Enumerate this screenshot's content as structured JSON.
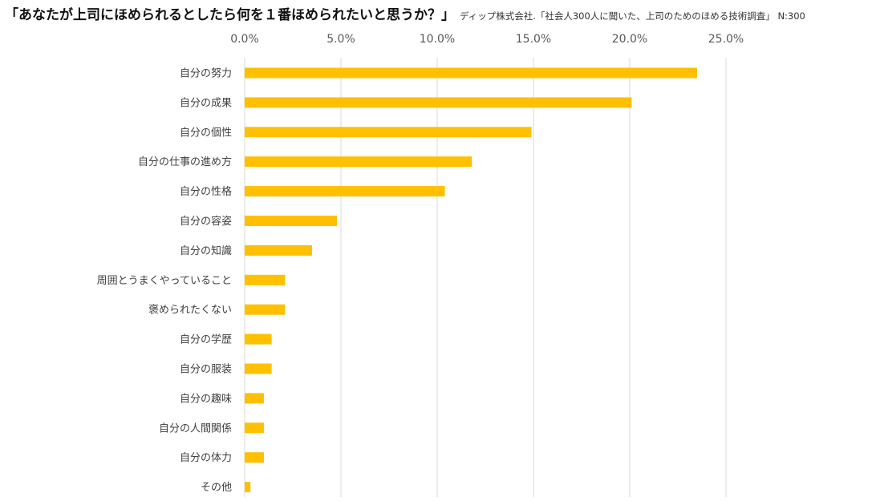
{
  "header": {
    "title": "「あなたが上司にほめられるとしたら何を１番ほめられたいと思うか？」",
    "source": "ディップ株式会社.「社会人300人に聞いた、上司のためのほめる技術調査」 N:300"
  },
  "colors": {
    "bar": "#FFC000",
    "grid": "#D9D9D9"
  },
  "chart_data": {
    "type": "bar",
    "orientation": "horizontal",
    "title": "「あなたが上司にほめられるとしたら何を１番ほめられたいと思うか？」",
    "categories": [
      "自分の努力",
      "自分の成果",
      "自分の個性",
      "自分の仕事の進め方",
      "自分の性格",
      "自分の容姿",
      "自分の知識",
      "周囲とうまくやっていること",
      "褒められたくない",
      "自分の学歴",
      "自分の服装",
      "自分の趣味",
      "自分の人間関係",
      "自分の体力",
      "その他"
    ],
    "values": [
      23.5,
      20.1,
      14.9,
      11.8,
      10.4,
      4.8,
      3.5,
      2.1,
      2.1,
      1.4,
      1.4,
      1.0,
      1.0,
      1.0,
      0.3
    ],
    "xlim": [
      0,
      25
    ],
    "xticks": [
      0,
      5,
      10,
      15,
      20,
      25
    ],
    "xtick_labels": [
      "0.0%",
      "5.0%",
      "10.0%",
      "15.0%",
      "20.0%",
      "25.0%"
    ],
    "axis_position": "top",
    "grid": true,
    "legend": "none"
  }
}
